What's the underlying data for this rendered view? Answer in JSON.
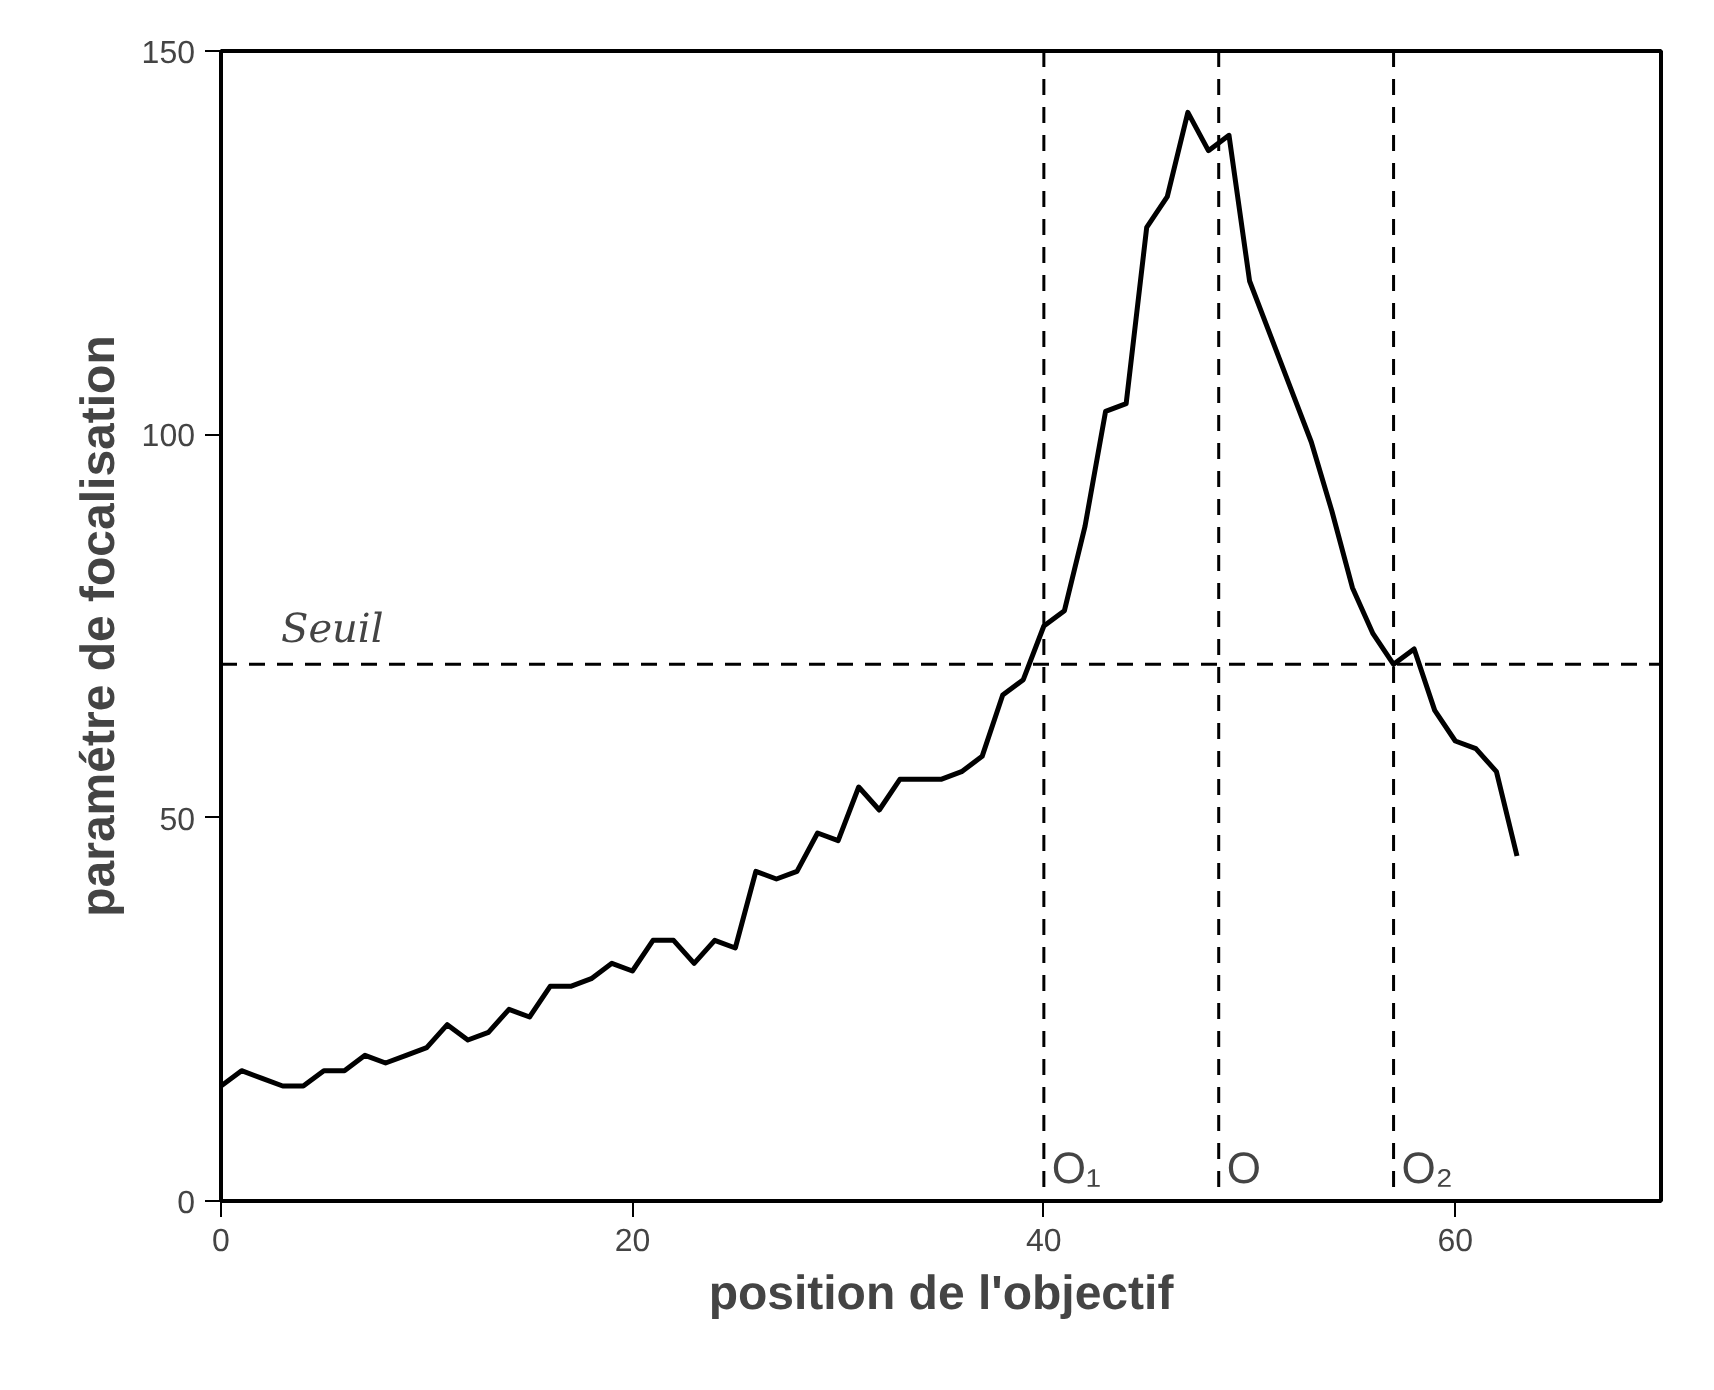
{
  "chart_data": {
    "type": "line",
    "xlabel": "position de l'objectif",
    "ylabel": "paramétre de focalisation",
    "x": [
      0,
      1,
      2,
      3,
      4,
      5,
      6,
      7,
      8,
      9,
      10,
      11,
      12,
      13,
      14,
      15,
      16,
      17,
      18,
      19,
      20,
      21,
      22,
      23,
      24,
      25,
      26,
      27,
      28,
      29,
      30,
      31,
      32,
      33,
      34,
      35,
      36,
      37,
      38,
      39,
      40,
      41,
      42,
      43,
      44,
      45,
      46,
      47,
      48,
      49,
      50,
      51,
      52,
      53,
      54,
      55,
      56,
      57,
      58,
      59,
      60,
      61,
      62,
      63
    ],
    "series": [
      {
        "color": "#000000",
        "values": [
          15,
          17,
          16,
          15,
          15,
          17,
          17,
          19,
          18,
          19,
          20,
          23,
          21,
          22,
          25,
          24,
          28,
          28,
          29,
          31,
          30,
          34,
          34,
          31,
          34,
          33,
          43,
          42,
          43,
          48,
          47,
          54,
          51,
          55,
          55,
          55,
          56,
          58,
          66,
          68,
          75,
          77,
          88,
          103,
          104,
          127,
          131,
          142,
          137,
          139,
          120,
          113,
          106,
          99,
          90,
          80,
          74,
          70,
          72,
          64,
          60,
          59,
          56,
          45
        ]
      }
    ],
    "xlim": [
      0,
      70
    ],
    "ylim": [
      0,
      150
    ],
    "xticks": [
      0,
      20,
      40,
      60
    ],
    "yticks": [
      0,
      50,
      100,
      150
    ],
    "grid": false,
    "marker": "none",
    "line_style": "solid",
    "ref_lines": [
      {
        "axis": "y",
        "value": 70,
        "label": "Seuil",
        "line_style": "dashed"
      },
      {
        "axis": "x",
        "value": 40,
        "label": "O₁",
        "line_style": "dashed"
      },
      {
        "axis": "x",
        "value": 48.5,
        "label": "O",
        "line_style": "dashed"
      },
      {
        "axis": "x",
        "value": 57,
        "label": "O₂",
        "line_style": "dashed"
      }
    ]
  }
}
